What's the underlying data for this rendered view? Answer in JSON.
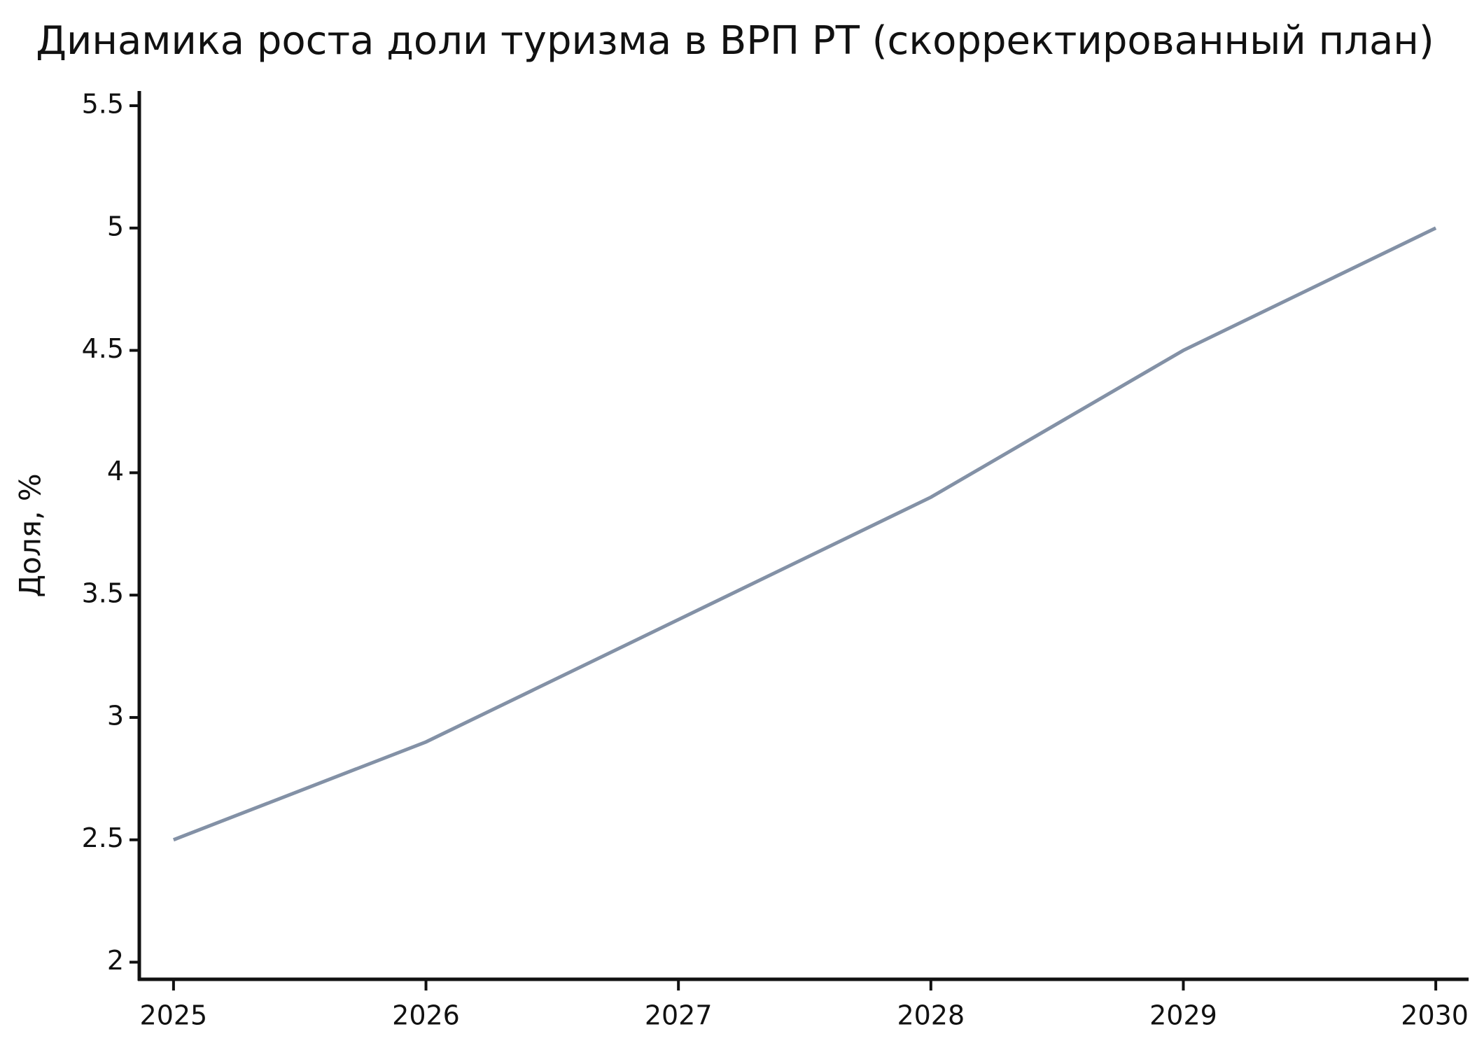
{
  "chart_data": {
    "type": "line",
    "title": "Динамика роста доли туризма в ВРП РТ (скорректированный план)",
    "y_label": "Доля, %",
    "x": [
      2025,
      2026,
      2027,
      2028,
      2029,
      2030
    ],
    "values": [
      2.5,
      2.9,
      3.4,
      3.9,
      4.5,
      5.0
    ],
    "color": "#8391a6",
    "xlim": [
      2024.87,
      2030.13
    ],
    "xticks": [
      2025,
      2026,
      2027,
      2028,
      2029,
      2030
    ],
    "ylim": [
      1.93,
      5.56
    ],
    "yticks": [
      2,
      2.5,
      3,
      3.5,
      4,
      4.5,
      5,
      5.5
    ],
    "grid": false
  }
}
